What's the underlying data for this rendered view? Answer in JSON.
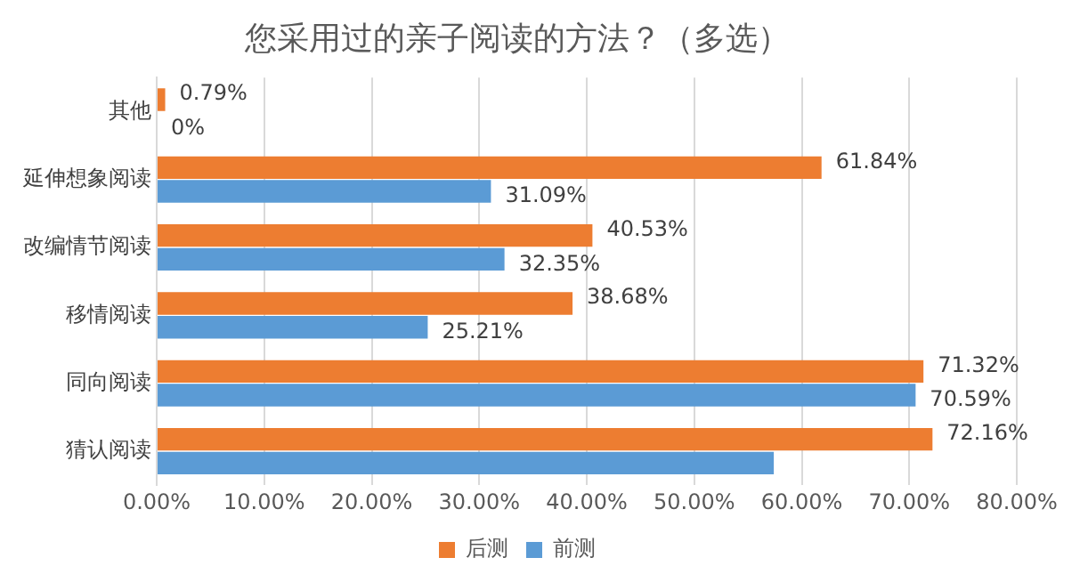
{
  "chart_data": {
    "type": "bar",
    "orientation": "horizontal",
    "title": "您采用过的亲子阅读的方法？（多选）",
    "categories": [
      "其他",
      "延伸想象阅读",
      "改编情节阅读",
      "移情阅读",
      "同向阅读",
      "猜认阅读"
    ],
    "series": [
      {
        "name": "后测",
        "color": "#ed7d31",
        "values": [
          0.79,
          61.84,
          40.53,
          38.68,
          71.32,
          72.16
        ],
        "value_labels": [
          "0.79%",
          "61.84%",
          "40.53%",
          "38.68%",
          "71.32%",
          "72.16%"
        ]
      },
      {
        "name": "前测",
        "color": "#5b9bd5",
        "values": [
          0,
          31.09,
          32.35,
          25.21,
          70.59,
          57.4
        ],
        "value_labels": [
          "0%",
          "31.09%",
          "32.35%",
          "25.21%",
          "70.59%",
          null
        ]
      }
    ],
    "xlim": [
      0,
      80
    ],
    "xticks": [
      {
        "value": 0,
        "label": "0.00%"
      },
      {
        "value": 10,
        "label": "10.00%"
      },
      {
        "value": 20,
        "label": "20.00%"
      },
      {
        "value": 30,
        "label": "30.00%"
      },
      {
        "value": 40,
        "label": "40.00%"
      },
      {
        "value": 50,
        "label": "50.00%"
      },
      {
        "value": 60,
        "label": "60.00%"
      },
      {
        "value": 70,
        "label": "70.00%"
      },
      {
        "value": 80,
        "label": "80.00%"
      }
    ],
    "grid": "x",
    "legend": "bottom"
  }
}
